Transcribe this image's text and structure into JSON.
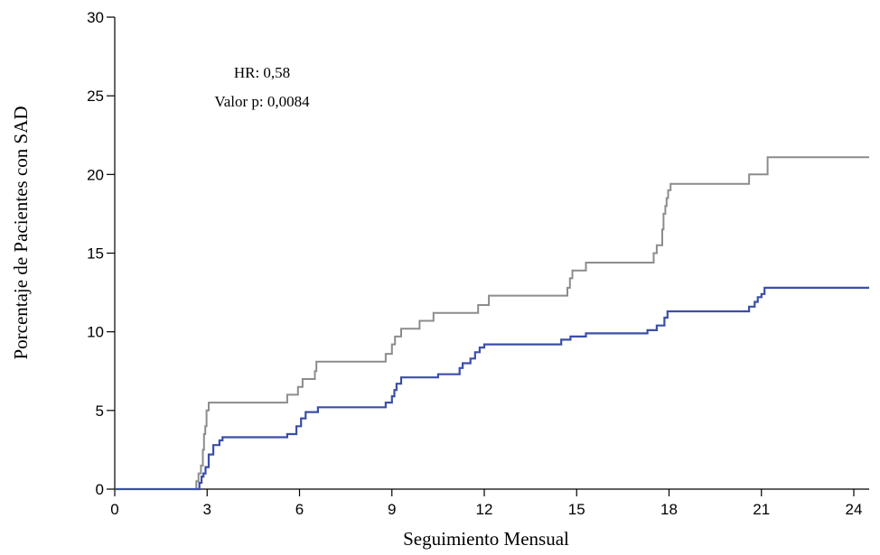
{
  "chart_data": {
    "type": "line",
    "xlabel": "Seguimiento Mensual",
    "ylabel": "Porcentaje de Pacientes con SAD",
    "xlim": [
      0,
      24.5
    ],
    "ylim": [
      0,
      30
    ],
    "x_ticks": [
      0,
      3,
      6,
      9,
      12,
      15,
      18,
      21,
      24
    ],
    "y_ticks": [
      0,
      5,
      10,
      15,
      20,
      25,
      30
    ],
    "grid": false,
    "annotations": [
      "HR: 0,58",
      "Valor p: 0,0084"
    ],
    "series": [
      {
        "color": "#8c8c8c",
        "step": true,
        "points": [
          [
            0,
            0
          ],
          [
            2.6,
            0
          ],
          [
            2.65,
            0.5
          ],
          [
            2.72,
            1.0
          ],
          [
            2.8,
            1.5
          ],
          [
            2.86,
            2.5
          ],
          [
            2.9,
            3.5
          ],
          [
            2.94,
            4.0
          ],
          [
            2.98,
            5.0
          ],
          [
            3.05,
            5.5
          ],
          [
            5.6,
            5.5
          ],
          [
            5.6,
            6.0
          ],
          [
            5.95,
            6.5
          ],
          [
            6.1,
            7.0
          ],
          [
            6.5,
            7.5
          ],
          [
            6.55,
            8.1
          ],
          [
            8.8,
            8.1
          ],
          [
            8.8,
            8.6
          ],
          [
            9.0,
            9.2
          ],
          [
            9.1,
            9.7
          ],
          [
            9.3,
            10.2
          ],
          [
            9.9,
            10.7
          ],
          [
            10.35,
            11.2
          ],
          [
            11.8,
            11.2
          ],
          [
            11.8,
            11.7
          ],
          [
            12.15,
            12.3
          ],
          [
            14.7,
            12.3
          ],
          [
            14.7,
            12.8
          ],
          [
            14.78,
            13.4
          ],
          [
            14.86,
            13.9
          ],
          [
            15.3,
            14.4
          ],
          [
            17.5,
            14.4
          ],
          [
            17.5,
            15.0
          ],
          [
            17.6,
            15.5
          ],
          [
            17.78,
            16.5
          ],
          [
            17.82,
            17.5
          ],
          [
            17.88,
            18.0
          ],
          [
            17.92,
            18.5
          ],
          [
            17.97,
            19.0
          ],
          [
            18.05,
            19.4
          ],
          [
            20.6,
            19.4
          ],
          [
            20.6,
            20.0
          ],
          [
            21.2,
            21.1
          ],
          [
            24.5,
            21.1
          ]
        ]
      },
      {
        "color": "#3b4ea8",
        "step": true,
        "points": [
          [
            0,
            0
          ],
          [
            2.7,
            0
          ],
          [
            2.75,
            0.4
          ],
          [
            2.82,
            0.8
          ],
          [
            2.88,
            1.0
          ],
          [
            2.95,
            1.4
          ],
          [
            3.05,
            2.2
          ],
          [
            3.2,
            2.8
          ],
          [
            3.4,
            3.1
          ],
          [
            3.5,
            3.3
          ],
          [
            5.6,
            3.3
          ],
          [
            5.6,
            3.5
          ],
          [
            5.9,
            4.0
          ],
          [
            6.05,
            4.5
          ],
          [
            6.2,
            4.9
          ],
          [
            6.6,
            5.2
          ],
          [
            8.8,
            5.2
          ],
          [
            8.8,
            5.5
          ],
          [
            9.0,
            5.9
          ],
          [
            9.08,
            6.3
          ],
          [
            9.15,
            6.7
          ],
          [
            9.3,
            7.1
          ],
          [
            10.5,
            7.1
          ],
          [
            10.5,
            7.3
          ],
          [
            11.2,
            7.7
          ],
          [
            11.3,
            8.0
          ],
          [
            11.55,
            8.3
          ],
          [
            11.7,
            8.7
          ],
          [
            11.85,
            9.0
          ],
          [
            12.0,
            9.2
          ],
          [
            14.5,
            9.2
          ],
          [
            14.5,
            9.5
          ],
          [
            14.8,
            9.7
          ],
          [
            15.3,
            9.9
          ],
          [
            17.3,
            9.9
          ],
          [
            17.3,
            10.1
          ],
          [
            17.6,
            10.4
          ],
          [
            17.85,
            10.9
          ],
          [
            17.95,
            11.3
          ],
          [
            20.6,
            11.3
          ],
          [
            20.6,
            11.6
          ],
          [
            20.78,
            11.9
          ],
          [
            20.88,
            12.2
          ],
          [
            21.0,
            12.4
          ],
          [
            21.1,
            12.8
          ],
          [
            24.5,
            12.8
          ]
        ]
      }
    ]
  }
}
